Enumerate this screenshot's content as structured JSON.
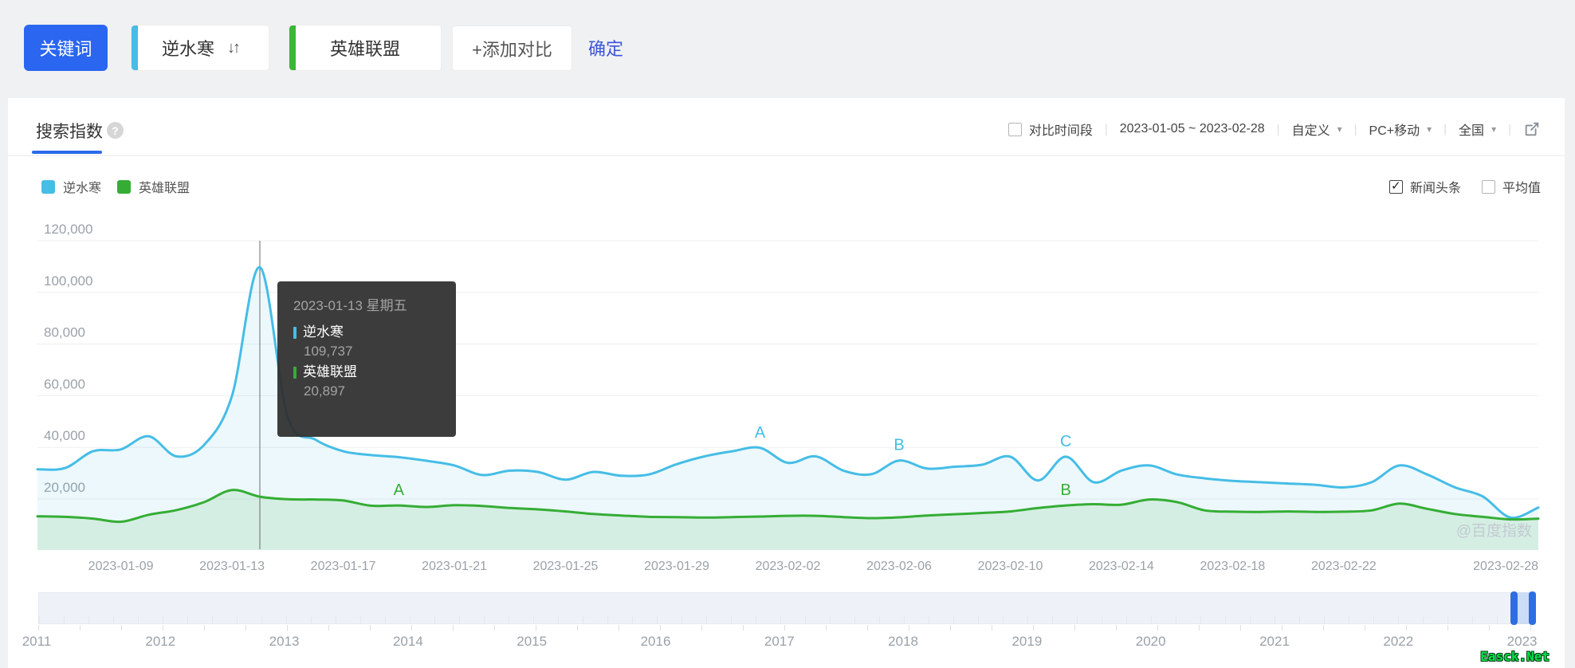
{
  "page": {
    "background": "#f0f1f3",
    "watermark": "@百度指数",
    "site_watermark": "Easck.Net"
  },
  "toolbar": {
    "keyword_button": "关键词",
    "keywords": [
      {
        "label": "逆水寒",
        "color": "#45bde6"
      },
      {
        "label": "英雄联盟",
        "color": "#3ab734"
      }
    ],
    "sort_icon": "down-up-arrows",
    "add_compare": "+添加对比",
    "confirm": "确定"
  },
  "panel": {
    "title": "搜索指数",
    "help_icon": "?",
    "controls": {
      "compare_label": "对比时间段",
      "compare_checked": false,
      "date_range": "2023-01-05 ~ 2023-02-28",
      "dropdowns": [
        "自定义",
        "PC+移动",
        "全国"
      ]
    },
    "legend": [
      {
        "label": "逆水寒",
        "color": "#45bde6"
      },
      {
        "label": "英雄联盟",
        "color": "#35ad35"
      }
    ],
    "toggles": [
      {
        "label": "新闻头条",
        "checked": true
      },
      {
        "label": "平均值",
        "checked": false
      }
    ]
  },
  "tooltip": {
    "title": "2023-01-13 星期五",
    "rows": [
      {
        "name": "逆水寒",
        "value": "109,737",
        "color": "#45bde6"
      },
      {
        "name": "英雄联盟",
        "value": "20,897",
        "color": "#35ad35"
      }
    ]
  },
  "chart_data": {
    "type": "line",
    "title": "搜索指数",
    "xlabel": "",
    "ylabel": "",
    "ylim": [
      0,
      120000
    ],
    "grid": true,
    "x": [
      "2023-01-05",
      "2023-01-06",
      "2023-01-07",
      "2023-01-08",
      "2023-01-09",
      "2023-01-10",
      "2023-01-11",
      "2023-01-12",
      "2023-01-13",
      "2023-01-14",
      "2023-01-15",
      "2023-01-16",
      "2023-01-17",
      "2023-01-18",
      "2023-01-19",
      "2023-01-20",
      "2023-01-21",
      "2023-01-22",
      "2023-01-23",
      "2023-01-24",
      "2023-01-25",
      "2023-01-26",
      "2023-01-27",
      "2023-01-28",
      "2023-01-29",
      "2023-01-30",
      "2023-01-31",
      "2023-02-01",
      "2023-02-02",
      "2023-02-03",
      "2023-02-04",
      "2023-02-05",
      "2023-02-06",
      "2023-02-07",
      "2023-02-08",
      "2023-02-09",
      "2023-02-10",
      "2023-02-11",
      "2023-02-12",
      "2023-02-13",
      "2023-02-14",
      "2023-02-15",
      "2023-02-16",
      "2023-02-17",
      "2023-02-18",
      "2023-02-19",
      "2023-02-20",
      "2023-02-21",
      "2023-02-22",
      "2023-02-23",
      "2023-02-24",
      "2023-02-25",
      "2023-02-26",
      "2023-02-27",
      "2023-02-28"
    ],
    "series": [
      {
        "name": "逆水寒",
        "color": "#45bde6",
        "area": "rgba(69,189,230,0.10)",
        "values": [
          31500,
          32000,
          38500,
          39200,
          44300,
          36500,
          41000,
          60000,
          109737,
          52000,
          43000,
          38500,
          37000,
          36200,
          34800,
          33000,
          29300,
          31000,
          30500,
          27500,
          30500,
          29000,
          29500,
          33500,
          36500,
          38500,
          39800,
          34000,
          36500,
          31000,
          29600,
          34900,
          31800,
          32500,
          33300,
          36400,
          27200,
          36400,
          26500,
          31000,
          33000,
          29500,
          28000,
          27000,
          26500,
          26000,
          25500,
          24500,
          26500,
          33000,
          29500,
          24500,
          21000,
          12800,
          16700
        ]
      },
      {
        "name": "英雄联盟",
        "color": "#35ad35",
        "area": "rgba(52,170,52,0.12)",
        "values": [
          13300,
          13100,
          12400,
          11200,
          13900,
          15700,
          18800,
          23500,
          20897,
          19900,
          19800,
          19400,
          17400,
          17500,
          16900,
          17600,
          17300,
          16500,
          16000,
          15200,
          14200,
          13600,
          13100,
          13000,
          12800,
          13000,
          13200,
          13500,
          13500,
          13000,
          12600,
          12900,
          13600,
          14100,
          14600,
          15200,
          16500,
          17500,
          18000,
          17800,
          19800,
          18800,
          15600,
          15100,
          15000,
          15200,
          15000,
          15100,
          15600,
          18200,
          16200,
          14200,
          13100,
          12100,
          12400
        ]
      }
    ],
    "yticks": [
      {
        "value": 20000,
        "label": "20,000"
      },
      {
        "value": 40000,
        "label": "40,000"
      },
      {
        "value": 60000,
        "label": "60,000"
      },
      {
        "value": 80000,
        "label": "80,000"
      },
      {
        "value": 100000,
        "label": "100,000"
      },
      {
        "value": 120000,
        "label": "120,000"
      }
    ],
    "xticks": [
      "2023-01-09",
      "2023-01-13",
      "2023-01-17",
      "2023-01-21",
      "2023-01-25",
      "2023-01-29",
      "2023-02-02",
      "2023-02-06",
      "2023-02-10",
      "2023-02-14",
      "2023-02-18",
      "2023-02-22",
      "2023-02-28"
    ],
    "markers": [
      {
        "series": 0,
        "letter": "A",
        "date": "2023-01-31"
      },
      {
        "series": 0,
        "letter": "B",
        "date": "2023-02-05"
      },
      {
        "series": 0,
        "letter": "C",
        "date": "2023-02-11"
      },
      {
        "series": 1,
        "letter": "A",
        "date": "2023-01-18"
      },
      {
        "series": 1,
        "letter": "B",
        "date": "2023-02-11"
      }
    ],
    "highlight": {
      "date": "2023-01-13"
    },
    "legend_position": "top-left"
  },
  "navigator": {
    "years": [
      "2011",
      "2012",
      "2013",
      "2014",
      "2015",
      "2016",
      "2017",
      "2018",
      "2019",
      "2020",
      "2021",
      "2022",
      "2023"
    ],
    "selected_range": "2023-01-05 ~ 2023-02-28"
  }
}
